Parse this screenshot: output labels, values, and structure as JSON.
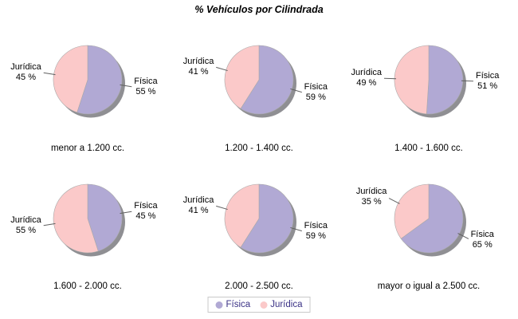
{
  "chart_data": {
    "type": "pie",
    "title": "% Vehículos por Cilindrada",
    "legend_position": "bottom",
    "legend": [
      {
        "label": "Física",
        "color": "#b1a9d4"
      },
      {
        "label": "Jurídica",
        "color": "#fbc9c9"
      }
    ],
    "series_colors": {
      "Física": "#b1a9d4",
      "Jurídica": "#fbc9c9"
    },
    "shadow_color": "#8f8f93",
    "slice_stroke_color": "#a9a9a9",
    "leader_line_color": "#5f5f5f",
    "legend_text_color": "#3a3185",
    "legend_border_color": "#c9c9c9",
    "percent_suffix": " %",
    "pies": [
      {
        "caption": "menor a 1.200 cc.",
        "slices": [
          {
            "label": "Física",
            "pct": 55
          },
          {
            "label": "Jurídica",
            "pct": 45
          }
        ]
      },
      {
        "caption": "1.200 - 1.400 cc.",
        "slices": [
          {
            "label": "Física",
            "pct": 59
          },
          {
            "label": "Jurídica",
            "pct": 41
          }
        ]
      },
      {
        "caption": "1.400 - 1.600 cc.",
        "slices": [
          {
            "label": "Física",
            "pct": 51
          },
          {
            "label": "Jurídica",
            "pct": 49
          }
        ]
      },
      {
        "caption": "1.600 - 2.000 cc.",
        "slices": [
          {
            "label": "Física",
            "pct": 45
          },
          {
            "label": "Jurídica",
            "pct": 55
          }
        ]
      },
      {
        "caption": "2.000 - 2.500 cc.",
        "slices": [
          {
            "label": "Física",
            "pct": 59
          },
          {
            "label": "Jurídica",
            "pct": 41
          }
        ]
      },
      {
        "caption": "mayor o igual a 2.500 cc.",
        "slices": [
          {
            "label": "Física",
            "pct": 65
          },
          {
            "label": "Jurídica",
            "pct": 35
          }
        ]
      }
    ]
  }
}
